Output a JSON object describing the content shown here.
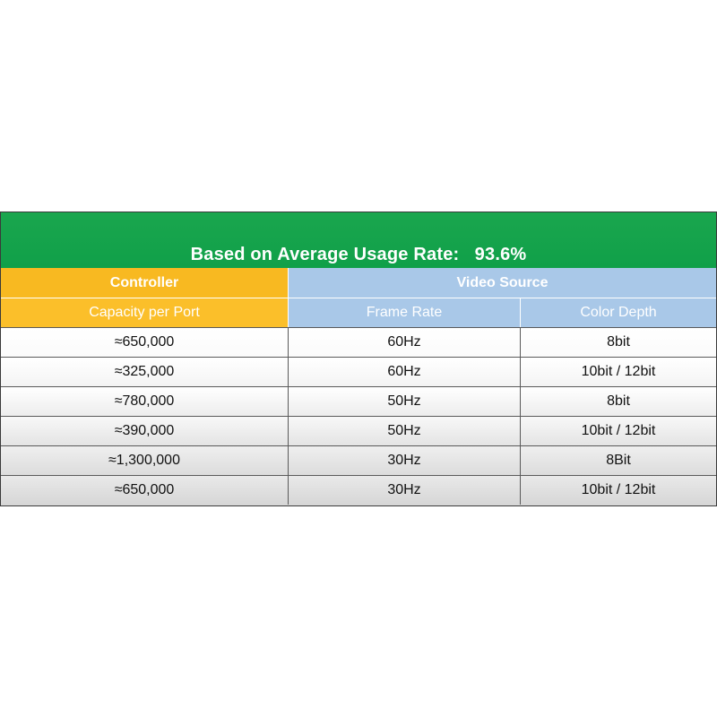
{
  "title": {
    "label": "Based on Average Usage Rate:",
    "value": "93.6%"
  },
  "headers": {
    "controller": "Controller",
    "video_source": "Video Source",
    "capacity_per_port": "Capacity per Port",
    "frame_rate": "Frame Rate",
    "color_depth": "Color Depth"
  },
  "rows": [
    {
      "capacity": "≈650,000",
      "frame_rate": "60Hz",
      "color_depth": "8bit"
    },
    {
      "capacity": "≈325,000",
      "frame_rate": "60Hz",
      "color_depth": "10bit / 12bit"
    },
    {
      "capacity": "≈780,000",
      "frame_rate": "50Hz",
      "color_depth": "8bit"
    },
    {
      "capacity": "≈390,000",
      "frame_rate": "50Hz",
      "color_depth": "10bit / 12bit"
    },
    {
      "capacity": "≈1,300,000",
      "frame_rate": "30Hz",
      "color_depth": "8Bit"
    },
    {
      "capacity": "≈650,000",
      "frame_rate": "30Hz",
      "color_depth": "10bit / 12bit"
    }
  ],
  "colors": {
    "title_band": "#10a049",
    "controller_header": "#f8b921",
    "video_source_header": "#a9c8e8"
  }
}
